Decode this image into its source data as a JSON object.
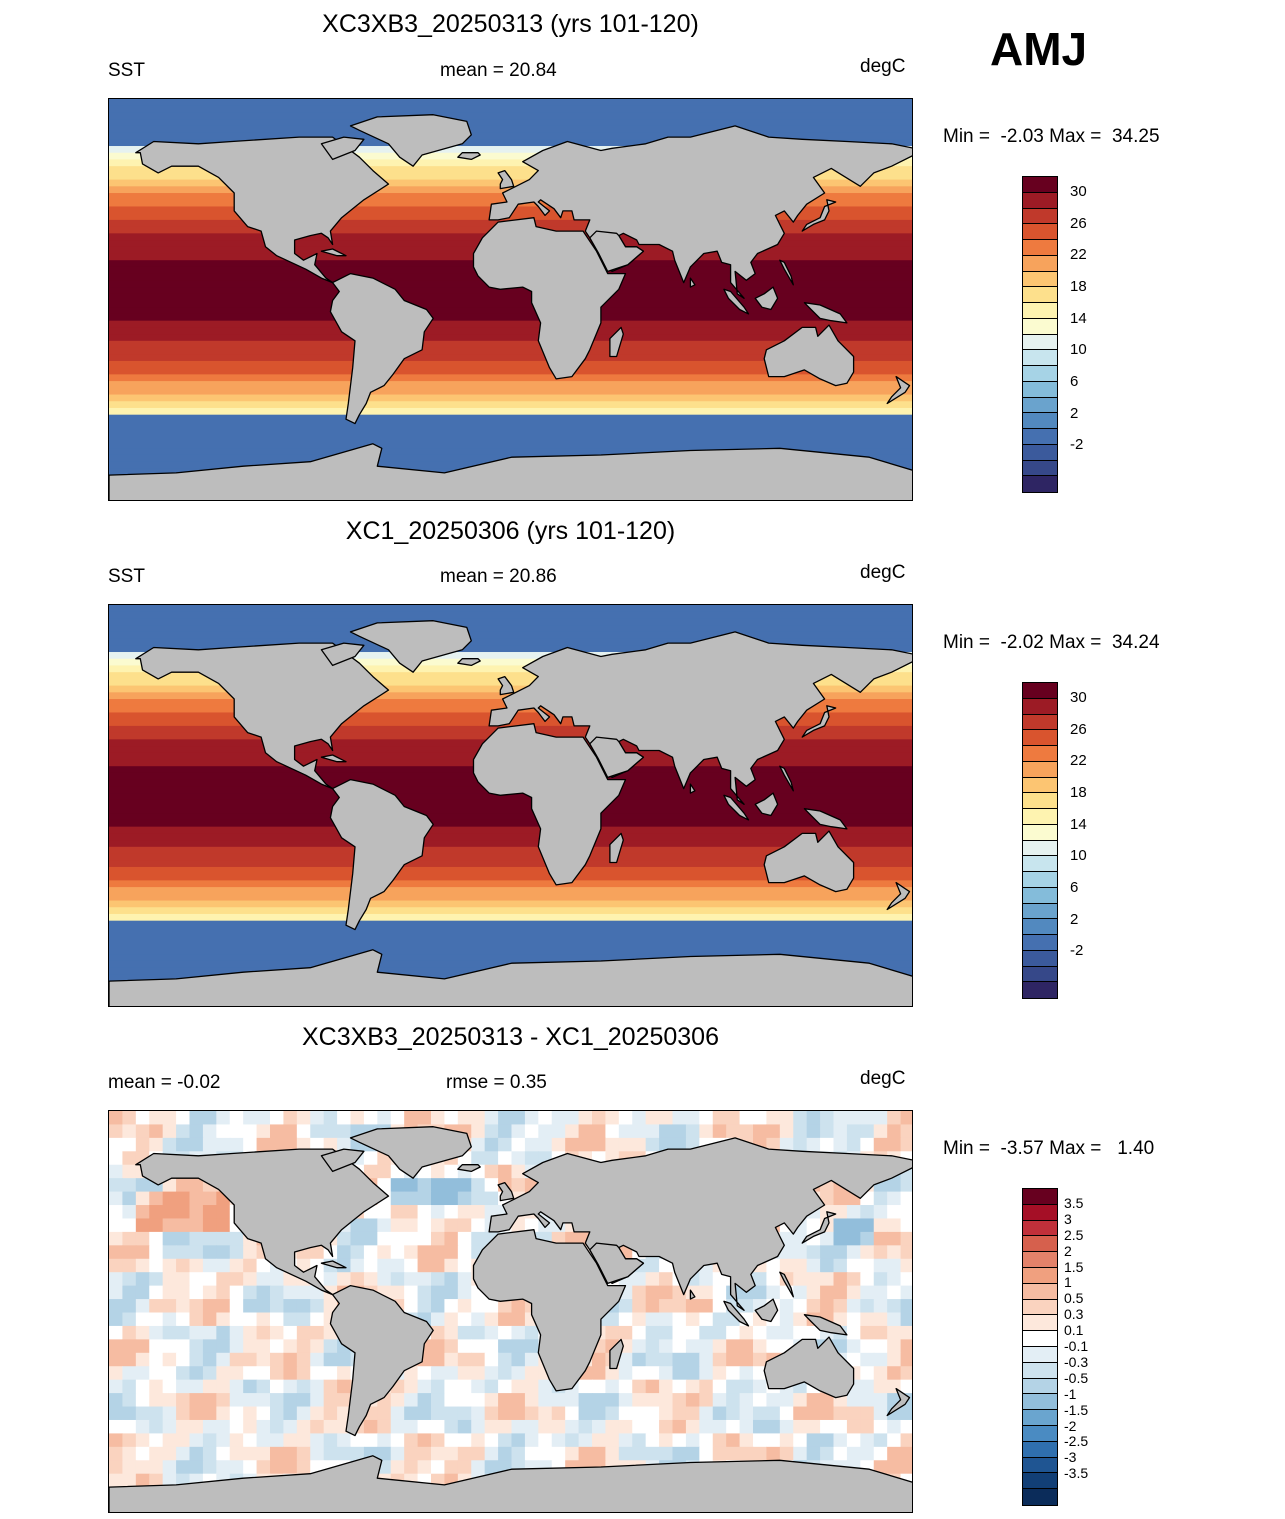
{
  "season": "AMJ",
  "panels": [
    {
      "title": "XC3XB3_20250313 (yrs 101-120)",
      "left_label": "SST",
      "center_label": "mean =  20.84",
      "units": "degC",
      "minmax": "Min =  -2.03 Max =  34.25",
      "field": "SST"
    },
    {
      "title": "XC1_20250306 (yrs 101-120)",
      "left_label": "SST",
      "center_label": "mean =  20.86",
      "units": "degC",
      "minmax": "Min =  -2.02 Max =  34.24",
      "field": "SST"
    },
    {
      "title": "XC3XB3_20250313 - XC1_20250306",
      "left_label": "mean =  -0.02",
      "center_label": "rmse =   0.35",
      "units": "degC",
      "minmax": "Min =  -3.57 Max =   1.40",
      "field": "difference"
    }
  ],
  "sst_colorbar": {
    "labels": [
      "30",
      "26",
      "22",
      "18",
      "14",
      "10",
      "6",
      "2",
      "-2"
    ],
    "colors": [
      "#67001f",
      "#9c1b25",
      "#c0392b",
      "#d9542e",
      "#ee7a3f",
      "#f7a35c",
      "#fcc572",
      "#fde08c",
      "#fef3b0",
      "#fbfbd0",
      "#e6f2f0",
      "#c8e5ee",
      "#a6d3e6",
      "#84bcda",
      "#6aa3cd",
      "#5289bf",
      "#4570b0",
      "#3b5a9c",
      "#364889",
      "#2e2563"
    ]
  },
  "diff_colorbar": {
    "labels": [
      "3.5",
      "3",
      "2.5",
      "2",
      "1.5",
      "1",
      "0.5",
      "0.3",
      "0.1",
      "-0.1",
      "-0.3",
      "-0.5",
      "-1",
      "-1.5",
      "-2",
      "-2.5",
      "-3",
      "-3.5"
    ],
    "colors": [
      "#67001f",
      "#a50f26",
      "#c0303a",
      "#d6604d",
      "#e3826a",
      "#f0a07f",
      "#f6bca2",
      "#fad3bf",
      "#fde8dc",
      "#ffffff",
      "#e3eef5",
      "#cde2ee",
      "#b4d3e6",
      "#92bedb",
      "#6aa5cf",
      "#4a8bc2",
      "#2f6fae",
      "#1f5592",
      "#123f76",
      "#0b2c5a"
    ]
  },
  "colors": {
    "land": "#bdbdbd",
    "outline": "#000000"
  }
}
